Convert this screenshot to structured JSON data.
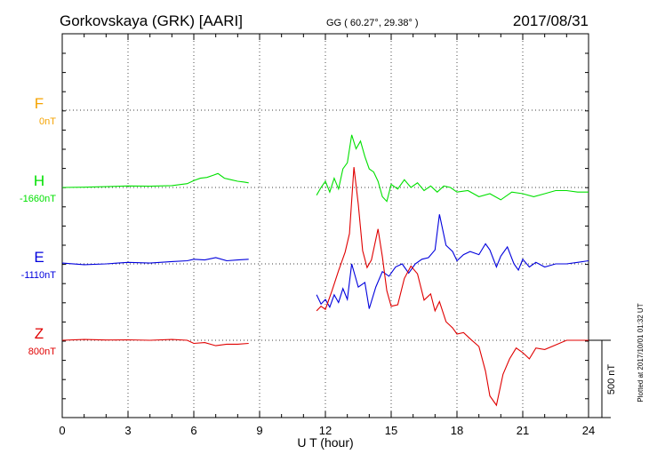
{
  "header": {
    "station": "Gorkovskaya (GRK)  [AARI]",
    "coords": "GG ( 60.27°,  29.38° )",
    "date": "2017/08/31"
  },
  "footer": {
    "plotted": "Plotted at 2017/10/01 01:32 UT"
  },
  "scale_bar": {
    "label": "500 nT",
    "value_nT": 500
  },
  "chart_data": {
    "type": "line",
    "xlabel": "U T (hour)",
    "xlim": [
      0,
      24
    ],
    "xticks": [
      0,
      3,
      6,
      9,
      12,
      15,
      18,
      21,
      24
    ],
    "grid": true,
    "series": [
      {
        "name": "F",
        "baseline_label": "0nT",
        "color": "#f5a300",
        "x": [],
        "values": []
      },
      {
        "name": "H",
        "baseline_label": "-1660nT",
        "color": "#00e000",
        "x": [
          0,
          1,
          2,
          3,
          4,
          5,
          5.7,
          6.0,
          6.3,
          6.6,
          6.9,
          7.1,
          7.4,
          7.7,
          8.0,
          8.3,
          8.5,
          11.6,
          11.8,
          12.0,
          12.2,
          12.4,
          12.6,
          12.8,
          13.0,
          13.2,
          13.4,
          13.6,
          13.8,
          14.0,
          14.2,
          14.4,
          14.6,
          14.8,
          15.0,
          15.3,
          15.6,
          15.9,
          16.2,
          16.5,
          16.8,
          17.1,
          17.4,
          17.7,
          18.0,
          18.5,
          19.0,
          19.5,
          20.0,
          20.5,
          21.0,
          21.5,
          22.0,
          22.5,
          23.0,
          23.5,
          24.0
        ],
        "values": [
          0,
          2,
          5,
          10,
          8,
          12,
          25,
          45,
          60,
          65,
          80,
          90,
          60,
          50,
          40,
          35,
          30,
          -50,
          0,
          40,
          -30,
          60,
          -10,
          120,
          160,
          340,
          250,
          300,
          200,
          120,
          100,
          40,
          -60,
          -90,
          20,
          -10,
          50,
          0,
          30,
          -20,
          10,
          -30,
          10,
          0,
          -30,
          -20,
          -60,
          -40,
          -80,
          -30,
          -40,
          -60,
          -40,
          -20,
          -20,
          -30,
          -30
        ]
      },
      {
        "name": "E",
        "baseline_label": "-1110nT",
        "color": "#0000dd",
        "x": [
          0,
          1,
          2,
          3,
          4,
          5,
          5.7,
          6.0,
          6.5,
          7.0,
          7.5,
          8.0,
          8.5,
          11.6,
          11.8,
          12.0,
          12.2,
          12.4,
          12.6,
          12.8,
          13.0,
          13.2,
          13.5,
          13.8,
          14.0,
          14.3,
          14.6,
          14.9,
          15.2,
          15.5,
          15.8,
          16.1,
          16.4,
          16.7,
          17.0,
          17.2,
          17.5,
          17.8,
          18.0,
          18.3,
          18.6,
          19.0,
          19.3,
          19.5,
          19.8,
          20.0,
          20.3,
          20.6,
          20.8,
          21.0,
          21.3,
          21.6,
          22.0,
          22.5,
          23.0,
          23.5,
          24.0
        ],
        "values": [
          5,
          -5,
          0,
          10,
          5,
          15,
          20,
          30,
          25,
          40,
          20,
          25,
          30,
          -200,
          -260,
          -230,
          -280,
          -200,
          -250,
          -160,
          -230,
          0,
          -150,
          -120,
          -290,
          -150,
          -50,
          -80,
          -20,
          0,
          -60,
          0,
          30,
          40,
          90,
          320,
          120,
          80,
          20,
          60,
          80,
          60,
          130,
          90,
          -20,
          50,
          110,
          0,
          -40,
          30,
          -20,
          10,
          -20,
          0,
          0,
          10,
          20
        ]
      },
      {
        "name": "Z",
        "baseline_label": "800nT",
        "color": "#e00000",
        "x": [
          0,
          1,
          2,
          3,
          4,
          5,
          5.7,
          6.0,
          6.5,
          7.0,
          7.5,
          8.0,
          8.5,
          11.6,
          11.8,
          12.0,
          12.3,
          12.6,
          12.9,
          13.1,
          13.3,
          13.5,
          13.7,
          13.9,
          14.1,
          14.4,
          14.6,
          14.8,
          15.0,
          15.3,
          15.6,
          15.9,
          16.2,
          16.5,
          16.8,
          17.0,
          17.2,
          17.5,
          17.8,
          18.0,
          18.3,
          18.6,
          19.0,
          19.3,
          19.5,
          19.8,
          20.1,
          20.4,
          20.7,
          21.0,
          21.3,
          21.6,
          22.0,
          22.5,
          23.0,
          23.5,
          24.0
        ],
        "values": [
          0,
          5,
          2,
          3,
          0,
          5,
          0,
          -20,
          -15,
          -35,
          -25,
          -25,
          -20,
          190,
          220,
          200,
          320,
          450,
          570,
          690,
          1120,
          880,
          580,
          470,
          520,
          720,
          540,
          320,
          220,
          230,
          400,
          480,
          430,
          260,
          300,
          190,
          250,
          120,
          80,
          40,
          50,
          10,
          -40,
          -200,
          -360,
          -420,
          -220,
          -120,
          -50,
          -80,
          -120,
          -50,
          -60,
          -30,
          0,
          0,
          0
        ]
      }
    ]
  }
}
